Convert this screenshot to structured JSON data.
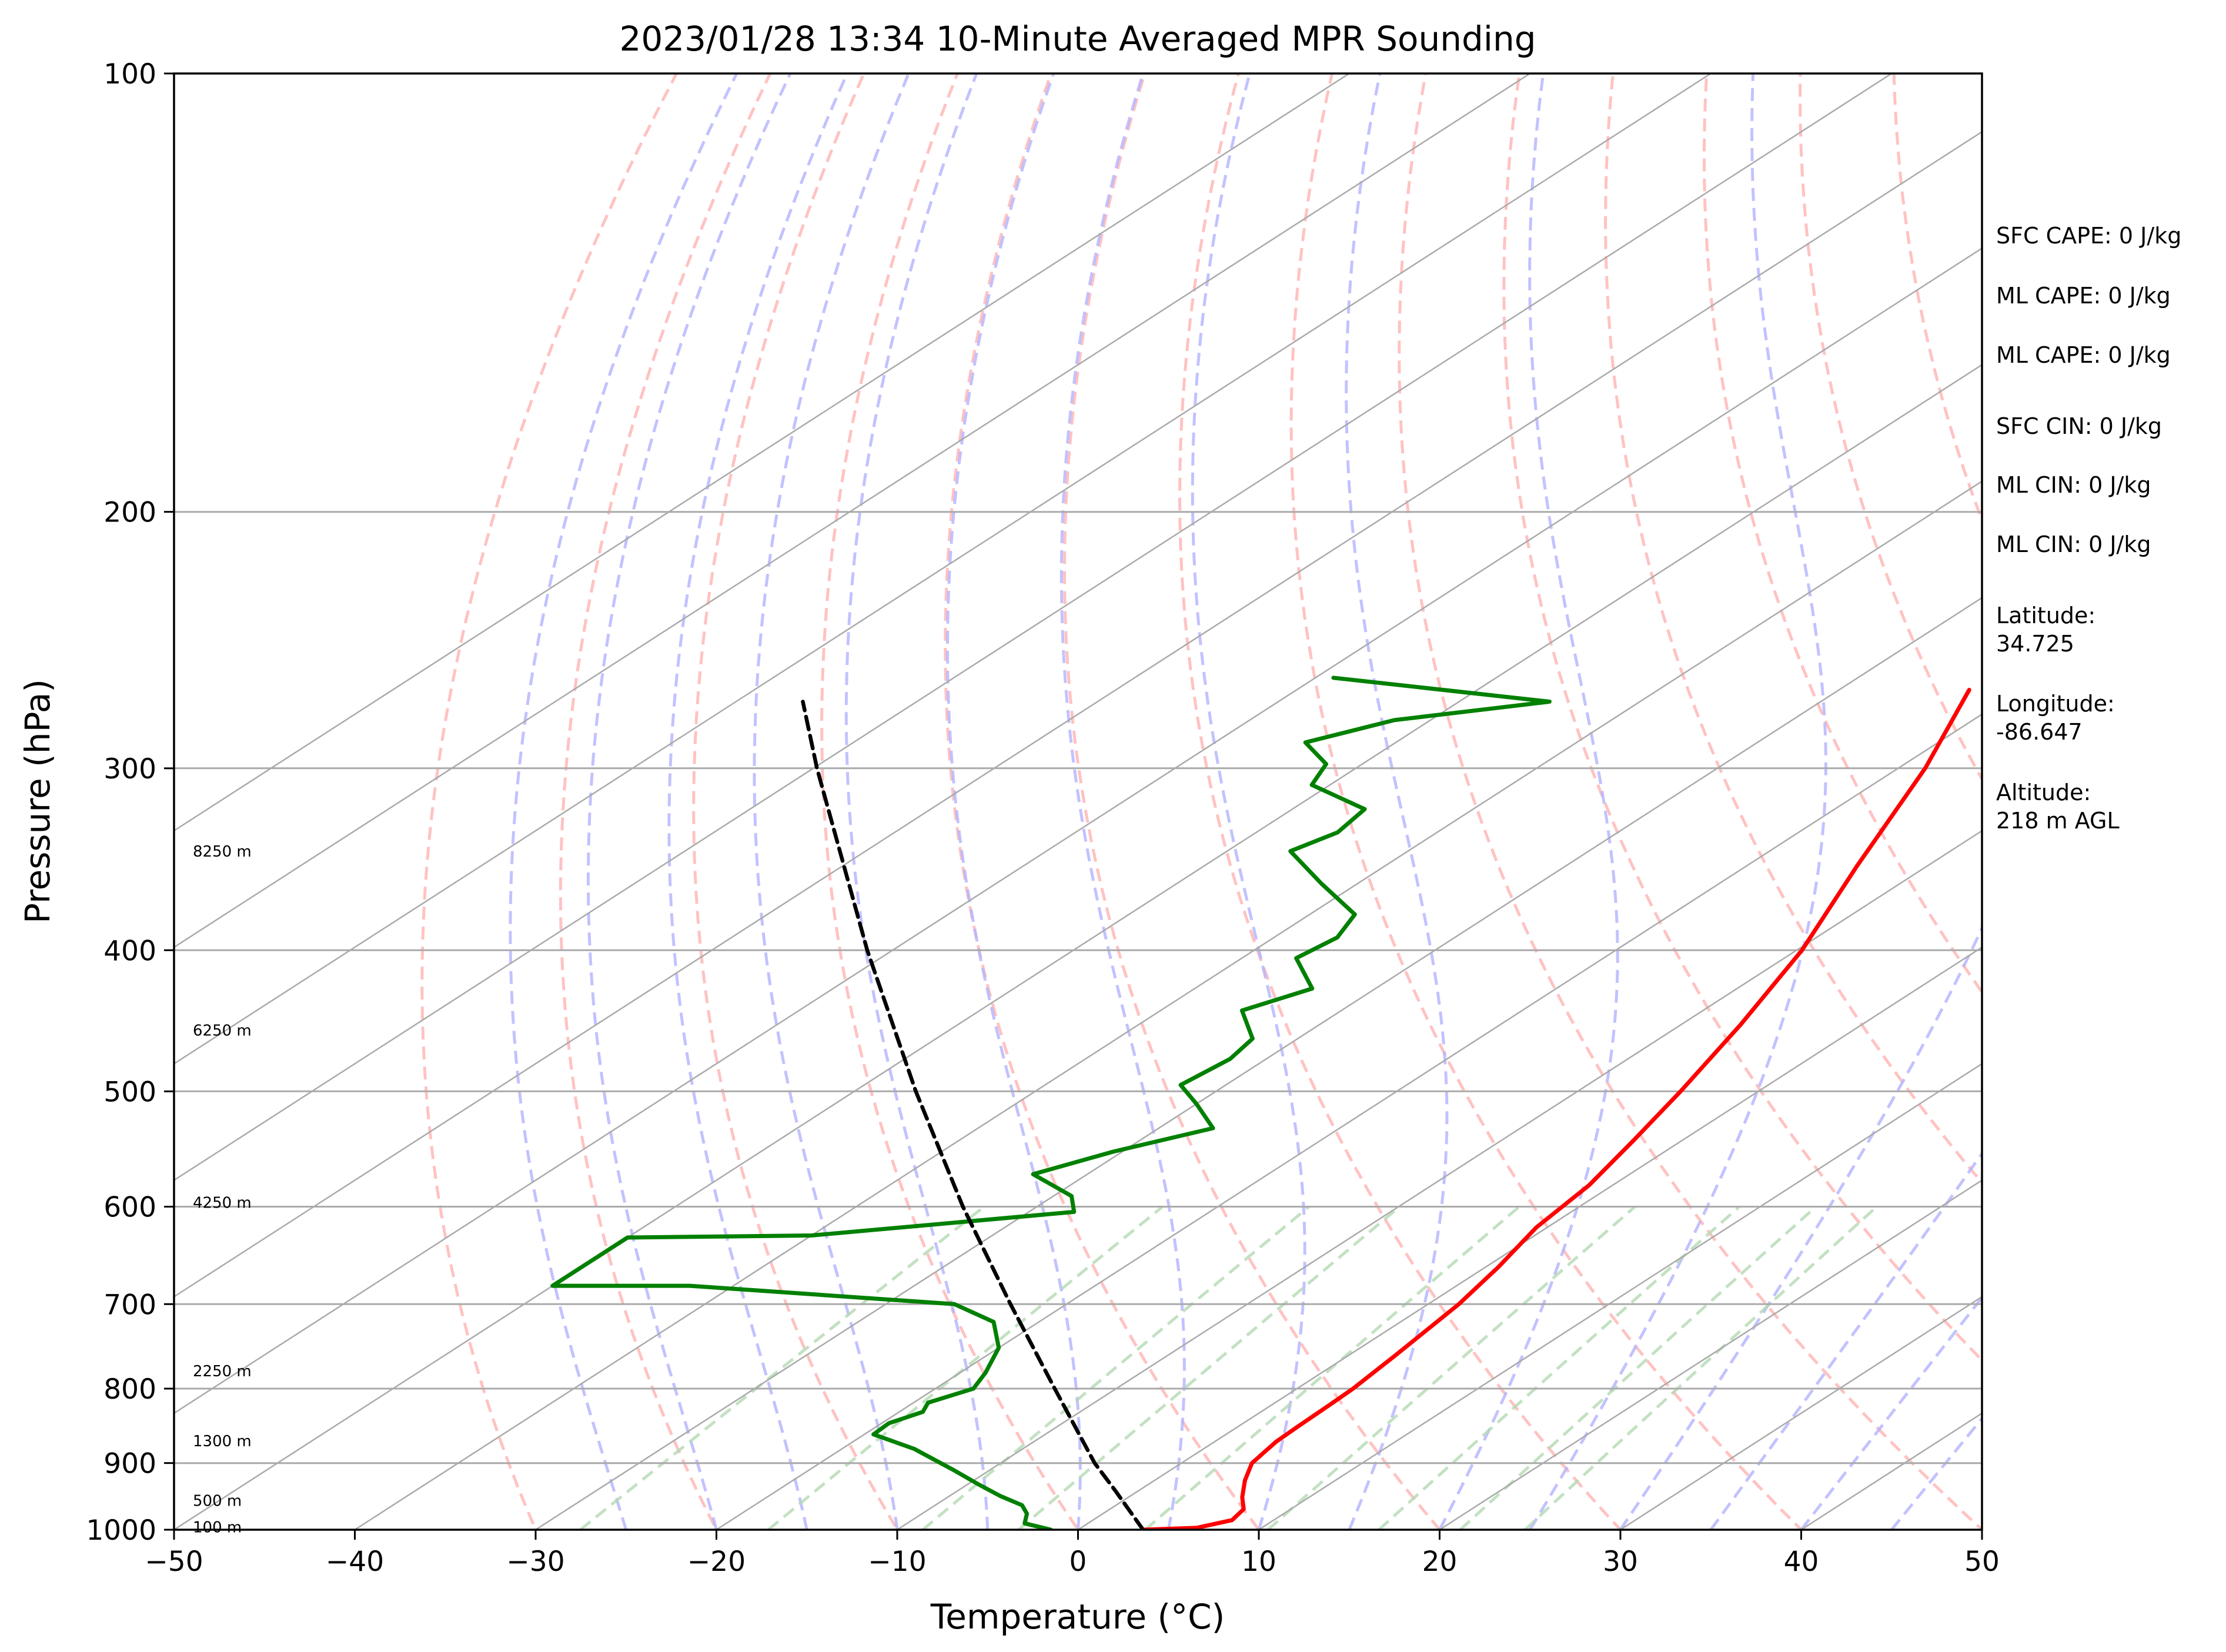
{
  "chart_data": {
    "type": "line",
    "diagram": "skew-t log-p",
    "title": "2023/01/28 13:34 10-Minute Averaged MPR Sounding",
    "xlabel": "Temperature (°C)",
    "ylabel": "Pressure (hPa)",
    "xlim": [
      -50,
      50
    ],
    "ylim": [
      1000,
      100
    ],
    "y_scale": "log",
    "x_ticks": [
      "−50",
      "−40",
      "−30",
      "−20",
      "−10",
      "0",
      "10",
      "20",
      "30",
      "40",
      "50"
    ],
    "y_ticks": [
      "100",
      "200",
      "300",
      "400",
      "500",
      "600",
      "700",
      "800",
      "900",
      "1000"
    ],
    "series": [
      {
        "role": "temperature",
        "color": "#ff0000",
        "points": [
          {
            "p": 1000,
            "t": 3.6
          },
          {
            "p": 997,
            "t": 6.4
          },
          {
            "p": 985,
            "t": 7.7
          },
          {
            "p": 968,
            "t": 7.4
          },
          {
            "p": 950,
            "t": 6.3
          },
          {
            "p": 925,
            "t": 5.0
          },
          {
            "p": 900,
            "t": 3.9
          },
          {
            "p": 870,
            "t": 3.4
          },
          {
            "p": 850,
            "t": 3.3
          },
          {
            "p": 820,
            "t": 3.2
          },
          {
            "p": 800,
            "t": 3.1
          },
          {
            "p": 760,
            "t": 2.6
          },
          {
            "p": 700,
            "t": 1.7
          },
          {
            "p": 660,
            "t": 0.7
          },
          {
            "p": 620,
            "t": -0.6
          },
          {
            "p": 580,
            "t": -1.3
          },
          {
            "p": 540,
            "t": -2.7
          },
          {
            "p": 500,
            "t": -4.3
          },
          {
            "p": 450,
            "t": -6.7
          },
          {
            "p": 400,
            "t": -9.7
          },
          {
            "p": 350,
            "t": -13.9
          },
          {
            "p": 300,
            "t": -18.5
          },
          {
            "p": 265,
            "t": -22.8
          }
        ]
      },
      {
        "role": "dewpoint",
        "color": "#008000",
        "points": [
          {
            "p": 1000,
            "t": -1.5
          },
          {
            "p": 990,
            "t": -3.5
          },
          {
            "p": 975,
            "t": -4.2
          },
          {
            "p": 962,
            "t": -5.2
          },
          {
            "p": 948,
            "t": -7.2
          },
          {
            "p": 930,
            "t": -9.5
          },
          {
            "p": 910,
            "t": -12.0
          },
          {
            "p": 880,
            "t": -16.0
          },
          {
            "p": 860,
            "t": -19.5
          },
          {
            "p": 845,
            "t": -19.6
          },
          {
            "p": 830,
            "t": -18.7
          },
          {
            "p": 818,
            "t": -19.2
          },
          {
            "p": 800,
            "t": -17.9
          },
          {
            "p": 780,
            "t": -18.6
          },
          {
            "p": 750,
            "t": -20.0
          },
          {
            "p": 720,
            "t": -22.5
          },
          {
            "p": 700,
            "t": -26.2
          },
          {
            "p": 680,
            "t": -42.4
          },
          {
            "p": 680,
            "t": -50.0
          },
          {
            "p": 630,
            "t": -50.0
          },
          {
            "p": 628,
            "t": -40.0
          },
          {
            "p": 605,
            "t": -27.5
          },
          {
            "p": 590,
            "t": -29.0
          },
          {
            "p": 570,
            "t": -33.0
          },
          {
            "p": 550,
            "t": -30.5
          },
          {
            "p": 530,
            "t": -27.0
          },
          {
            "p": 510,
            "t": -30.0
          },
          {
            "p": 495,
            "t": -32.5
          },
          {
            "p": 475,
            "t": -32.0
          },
          {
            "p": 460,
            "t": -32.5
          },
          {
            "p": 440,
            "t": -35.5
          },
          {
            "p": 425,
            "t": -33.5
          },
          {
            "p": 405,
            "t": -37.0
          },
          {
            "p": 392,
            "t": -36.5
          },
          {
            "p": 378,
            "t": -37.5
          },
          {
            "p": 360,
            "t": -42.0
          },
          {
            "p": 342,
            "t": -46.5
          },
          {
            "p": 332,
            "t": -45.5
          },
          {
            "p": 320,
            "t": -46.0
          },
          {
            "p": 308,
            "t": -51.0
          },
          {
            "p": 298,
            "t": -52.0
          },
          {
            "p": 288,
            "t": -55.0
          },
          {
            "p": 278,
            "t": -52.0
          },
          {
            "p": 270,
            "t": -45.0
          },
          {
            "p": 260,
            "t": -59.0
          }
        ]
      },
      {
        "role": "parcel",
        "color": "#000000",
        "style": "dashed",
        "points": [
          {
            "p": 1000,
            "t": 3.6
          },
          {
            "p": 940,
            "t": -1.3
          },
          {
            "p": 900,
            "t": -4.8
          },
          {
            "p": 800,
            "t": -13.4
          },
          {
            "p": 700,
            "t": -23.1
          },
          {
            "p": 600,
            "t": -34.1
          },
          {
            "p": 500,
            "t": -46.6
          },
          {
            "p": 400,
            "t": -61.4
          },
          {
            "p": 300,
            "t": -79.8
          },
          {
            "p": 270,
            "t": -86.3
          }
        ]
      }
    ],
    "reference_lines": {
      "isobars_hpa": [
        200,
        300,
        400,
        500,
        600,
        700,
        800,
        900
      ],
      "isotherms_c": [
        -110,
        -100,
        -90,
        -80,
        -70,
        -60,
        -50,
        -40,
        -30,
        -20,
        -10,
        0,
        10,
        20,
        30,
        40,
        50
      ],
      "dry_adiabats_c": [
        -30,
        -20,
        -10,
        0,
        10,
        20,
        30,
        40,
        50,
        60,
        70,
        80,
        90,
        100
      ],
      "moist_adiabats_c": [
        -25,
        -20,
        -15,
        -10,
        -5,
        0,
        5,
        10,
        15,
        20,
        25,
        30,
        35,
        40,
        45
      ],
      "mixing_ratios_gkg": [
        0.4,
        1,
        2,
        3,
        5,
        8,
        12,
        16,
        20
      ],
      "colors": {
        "isobar": "#aaaaaa",
        "isotherm": "#aaaaaa",
        "dry_adiabat": "#ffb3b3",
        "moist_adiabat": "#b3b3ff",
        "mixing_ratio": "#b3d9b3"
      }
    },
    "height_labels": [
      {
        "text": "8250 m",
        "p": 342
      },
      {
        "text": "6250 m",
        "p": 454
      },
      {
        "text": "4250 m",
        "p": 596
      },
      {
        "text": "2250 m",
        "p": 778
      },
      {
        "text": "1300 m",
        "p": 869
      },
      {
        "text": "500 m",
        "p": 955
      },
      {
        "text": "100 m",
        "p": 996
      }
    ],
    "indices": [
      "SFC CAPE: 0 J/kg",
      "ML CAPE: 0 J/kg",
      "ML CAPE: 0 J/kg",
      "SFC CIN: 0 J/kg",
      "ML CIN: 0 J/kg",
      "ML CIN: 0 J/kg"
    ],
    "station": [
      {
        "label": "Latitude:",
        "value": "34.725"
      },
      {
        "label": "Longitude:",
        "value": "-86.647"
      },
      {
        "label": "Altitude:",
        "value": "218 m AGL"
      }
    ]
  }
}
